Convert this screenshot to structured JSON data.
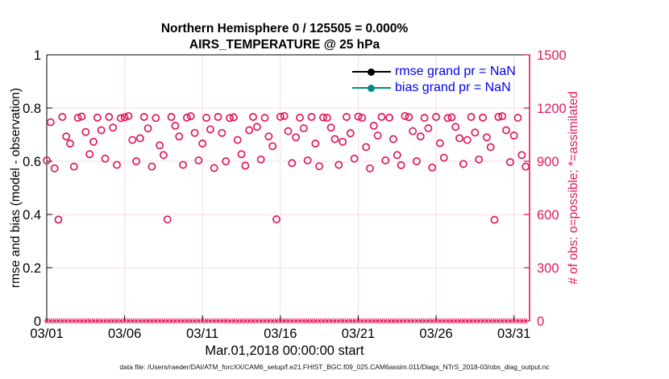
{
  "footer": "data file: /Users/raeder/DAI/ATM_forcXX/CAM6_setup/f.e21.FHIST_BGC.f09_025.CAM6assim.011/Diags_NTrS_2018-03/obs_diag_output.nc",
  "chart_data": {
    "type": "scatter",
    "title_line1": "Northern Hemisphere 0 / 125505 = 0.000%",
    "title_line2": "AIRS_TEMPERATURE @ 25 hPa",
    "grid_color": "#f6dbe4",
    "x_axis": {
      "label": "Mar.01,2018 00:00:00 start",
      "tick_labels": [
        "03/01",
        "03/06",
        "03/11",
        "03/16",
        "03/21",
        "03/26",
        "03/31"
      ],
      "tick_days": [
        0,
        5,
        10,
        15,
        20,
        25,
        30
      ],
      "range_days": [
        0,
        31
      ]
    },
    "left_axis": {
      "label": "rmse and bias (model - observation)",
      "tick_labels": [
        "0",
        "0.2",
        "0.4",
        "0.6",
        "0.8",
        "1"
      ],
      "tick_values": [
        0,
        0.2,
        0.4,
        0.6,
        0.8,
        1
      ],
      "range": [
        0,
        1
      ],
      "color": "#000000"
    },
    "right_axis": {
      "label": "# of obs: o=possible; *=assimilated",
      "tick_labels": [
        "0",
        "300",
        "600",
        "900",
        "1200",
        "1500"
      ],
      "tick_values": [
        0,
        300,
        600,
        900,
        1200,
        1500
      ],
      "range": [
        0,
        1500
      ],
      "color": "#e0195e"
    },
    "legend": {
      "text_color": "#0000ee",
      "items": [
        {
          "label": "rmse grand pr = NaN",
          "color": "#000000",
          "marker": "filled-circle"
        },
        {
          "label": "bias grand pr = NaN",
          "color": "#008a8a",
          "marker": "filled-circle"
        }
      ]
    },
    "series": [
      {
        "name": "possible",
        "marker": "open-circle",
        "color": "#e0195e",
        "axis": "right",
        "points": [
          [
            0,
            905
          ],
          [
            0.25,
            1120
          ],
          [
            0.5,
            860
          ],
          [
            0.75,
            571
          ],
          [
            1,
            1150
          ],
          [
            1.25,
            1040
          ],
          [
            1.5,
            1000
          ],
          [
            1.75,
            870
          ],
          [
            2,
            1145
          ],
          [
            2.25,
            1152
          ],
          [
            2.5,
            1065
          ],
          [
            2.75,
            940
          ],
          [
            3,
            1010
          ],
          [
            3.25,
            1146
          ],
          [
            3.5,
            1075
          ],
          [
            3.75,
            915
          ],
          [
            4,
            1150
          ],
          [
            4.25,
            1090
          ],
          [
            4.5,
            880
          ],
          [
            4.75,
            1143
          ],
          [
            5,
            1148
          ],
          [
            5.25,
            1155
          ],
          [
            5.5,
            1020
          ],
          [
            5.75,
            900
          ],
          [
            6,
            1030
          ],
          [
            6.25,
            1150
          ],
          [
            6.5,
            1085
          ],
          [
            6.75,
            870
          ],
          [
            7,
            1144
          ],
          [
            7.25,
            990
          ],
          [
            7.5,
            935
          ],
          [
            7.75,
            572
          ],
          [
            8,
            1150
          ],
          [
            8.25,
            1100
          ],
          [
            8.5,
            1040
          ],
          [
            8.75,
            880
          ],
          [
            9,
            1146
          ],
          [
            9.25,
            1154
          ],
          [
            9.5,
            1060
          ],
          [
            9.75,
            905
          ],
          [
            10,
            1000
          ],
          [
            10.25,
            1145
          ],
          [
            10.5,
            1080
          ],
          [
            10.75,
            862
          ],
          [
            11,
            1150
          ],
          [
            11.25,
            1060
          ],
          [
            11.5,
            900
          ],
          [
            11.75,
            1144
          ],
          [
            12,
            1148
          ],
          [
            12.25,
            1020
          ],
          [
            12.5,
            940
          ],
          [
            12.75,
            875
          ],
          [
            13,
            1075
          ],
          [
            13.25,
            1150
          ],
          [
            13.5,
            1094
          ],
          [
            13.75,
            910
          ],
          [
            14,
            1145
          ],
          [
            14.25,
            1040
          ],
          [
            14.5,
            985
          ],
          [
            14.75,
            573
          ],
          [
            15,
            1151
          ],
          [
            15.25,
            1155
          ],
          [
            15.5,
            1070
          ],
          [
            15.75,
            890
          ],
          [
            16,
            1035
          ],
          [
            16.25,
            1146
          ],
          [
            16.5,
            1086
          ],
          [
            16.75,
            905
          ],
          [
            17,
            1150
          ],
          [
            17.25,
            1000
          ],
          [
            17.5,
            872
          ],
          [
            17.75,
            1147
          ],
          [
            18,
            1145
          ],
          [
            18.25,
            1090
          ],
          [
            18.5,
            1025
          ],
          [
            18.75,
            880
          ],
          [
            19,
            1010
          ],
          [
            19.25,
            1150
          ],
          [
            19.5,
            1058
          ],
          [
            19.75,
            915
          ],
          [
            20,
            1152
          ],
          [
            20.25,
            1145
          ],
          [
            20.5,
            980
          ],
          [
            20.75,
            860
          ],
          [
            21,
            1100
          ],
          [
            21.25,
            1045
          ],
          [
            21.5,
            1150
          ],
          [
            21.75,
            905
          ],
          [
            22,
            1146
          ],
          [
            22.25,
            1025
          ],
          [
            22.5,
            935
          ],
          [
            22.75,
            878
          ],
          [
            23,
            1155
          ],
          [
            23.25,
            1149
          ],
          [
            23.5,
            1070
          ],
          [
            23.75,
            900
          ],
          [
            24,
            1040
          ],
          [
            24.25,
            1145
          ],
          [
            24.5,
            1086
          ],
          [
            24.75,
            865
          ],
          [
            25,
            1150
          ],
          [
            25.25,
            1002
          ],
          [
            25.5,
            920
          ],
          [
            25.75,
            1144
          ],
          [
            26,
            1148
          ],
          [
            26.25,
            1094
          ],
          [
            26.5,
            1030
          ],
          [
            26.75,
            885
          ],
          [
            27,
            1020
          ],
          [
            27.25,
            1150
          ],
          [
            27.5,
            1062
          ],
          [
            27.75,
            910
          ],
          [
            28,
            1146
          ],
          [
            28.25,
            1035
          ],
          [
            28.5,
            980
          ],
          [
            28.75,
            570
          ],
          [
            29,
            1150
          ],
          [
            29.25,
            1154
          ],
          [
            29.5,
            1075
          ],
          [
            29.75,
            895
          ],
          [
            30,
            1045
          ],
          [
            30.25,
            1145
          ],
          [
            30.5,
            935
          ],
          [
            30.75,
            870
          ]
        ]
      },
      {
        "name": "assimilated",
        "marker": "asterisk",
        "color": "#e0195e",
        "axis": "right",
        "points_constant": {
          "t_start": 0,
          "t_step": 0.25,
          "count": 124,
          "value": 0
        }
      },
      {
        "name": "rmse grand",
        "color": "#000000",
        "value": "NaN"
      },
      {
        "name": "bias grand",
        "color": "#008a8a",
        "value": "NaN"
      }
    ]
  }
}
